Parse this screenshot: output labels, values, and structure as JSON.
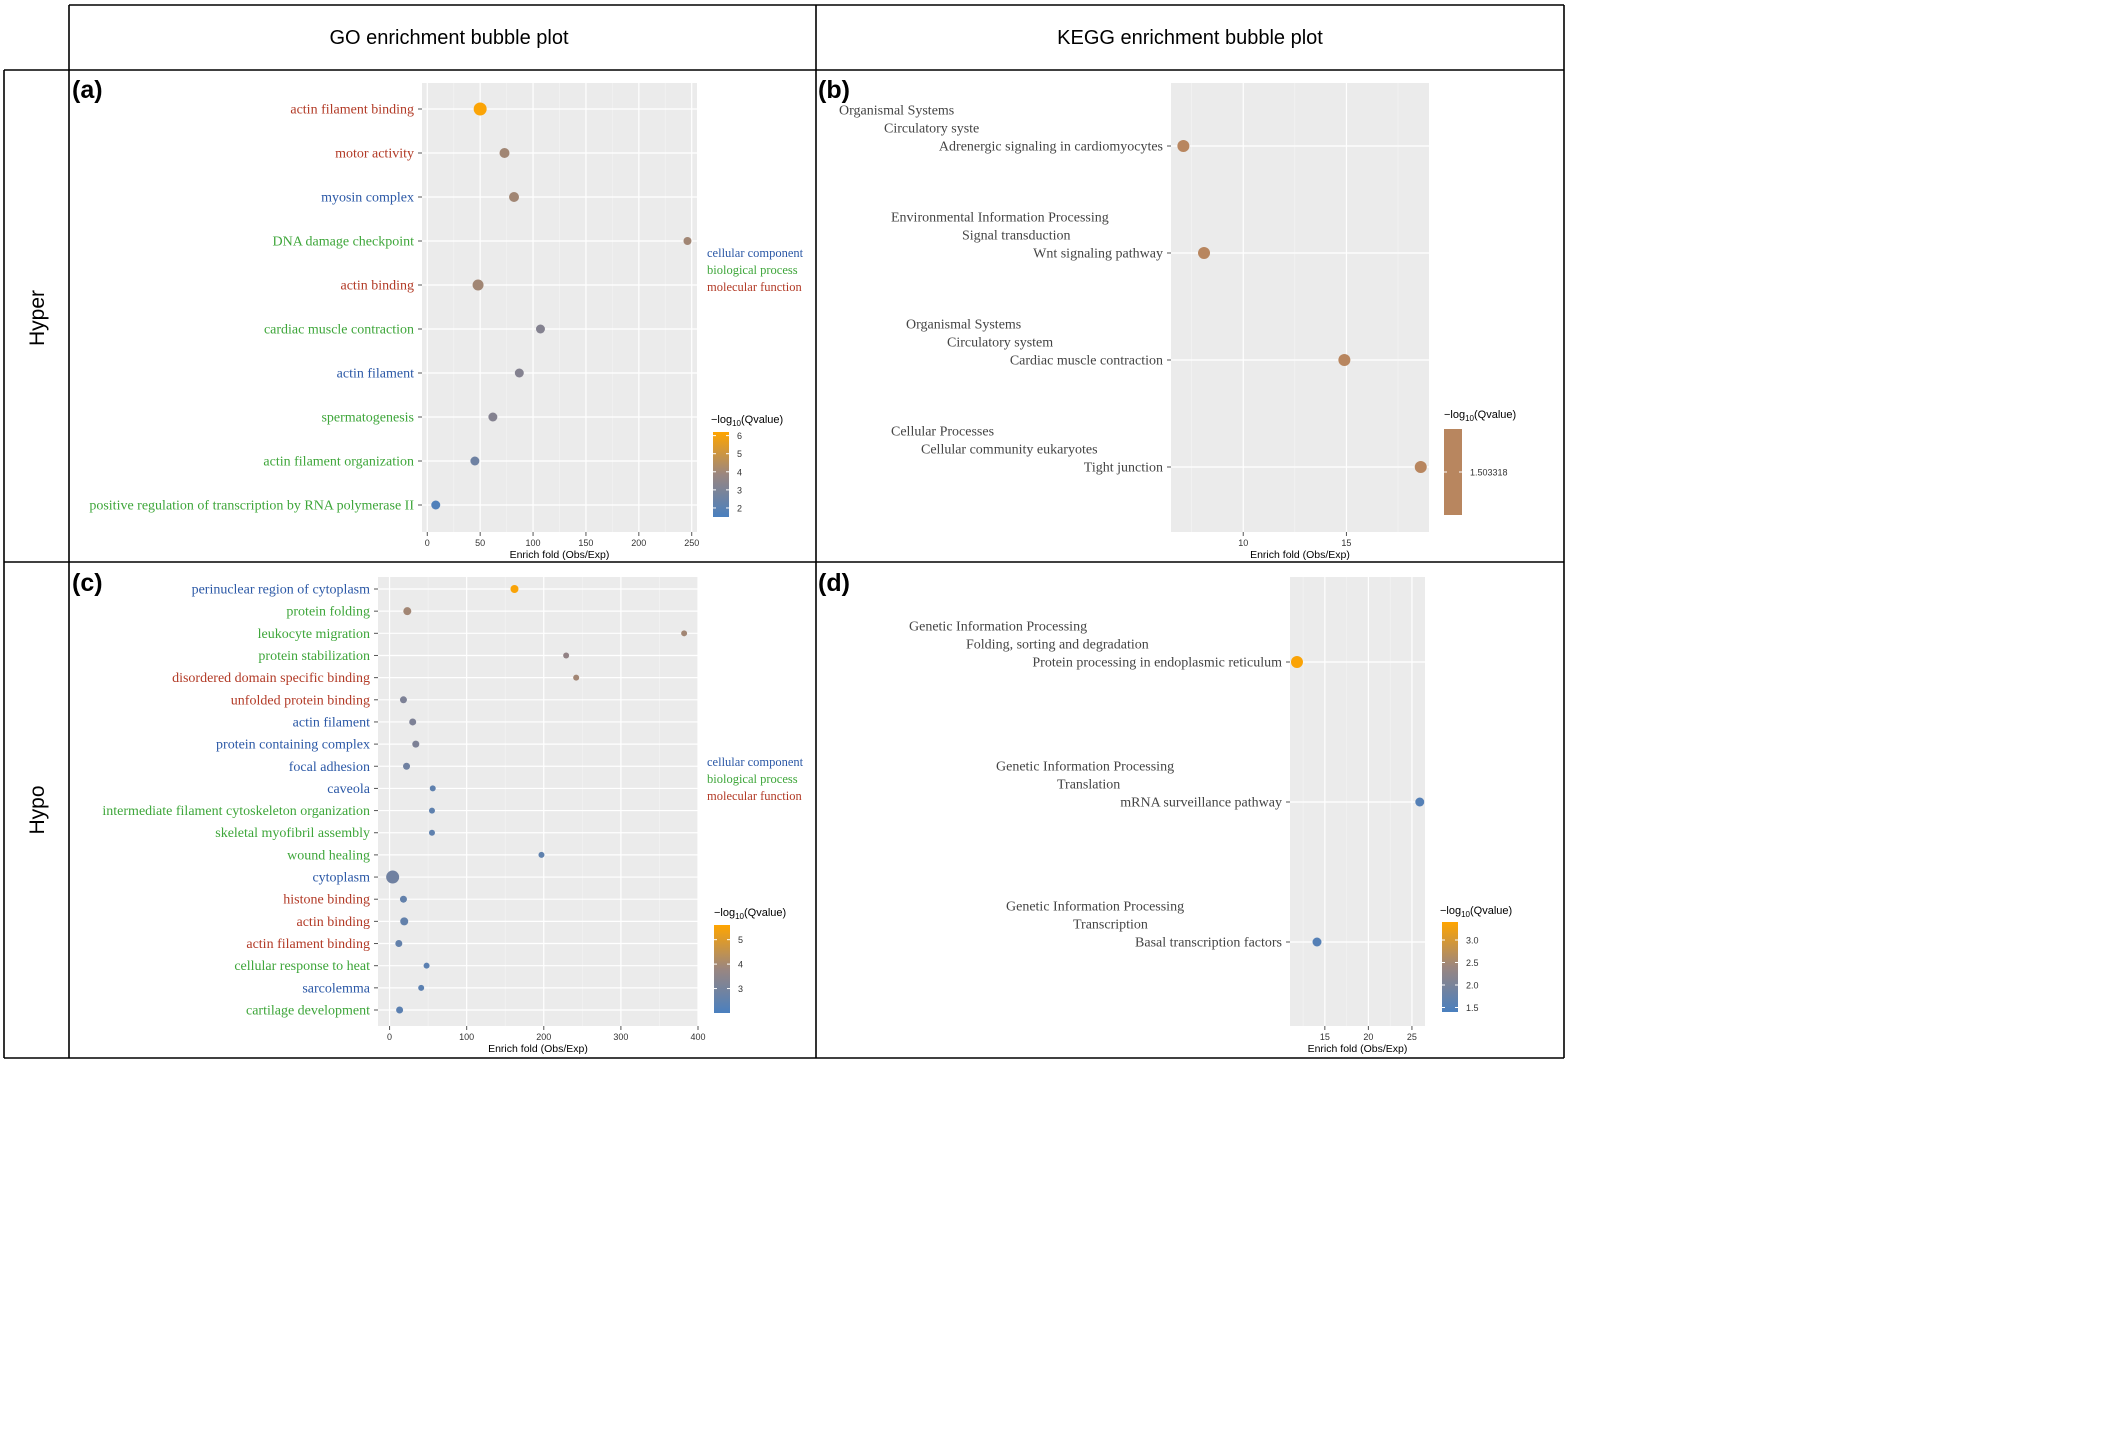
{
  "header": {
    "go_title": "GO enrichment bubble plot",
    "kegg_title": "KEGG enrichment bubble plot"
  },
  "rows": [
    "Hyper",
    "Hypo"
  ],
  "colors": {
    "cellular_component": "#2b58a6",
    "biological_process": "#3ea63a",
    "molecular_function": "#b23a26",
    "kegg_label": "#444444",
    "panel_bg": "#ebebeb",
    "low": "#4a80bf",
    "high": "#ffa500"
  },
  "category_legend": [
    "cellular component",
    "biological process",
    "molecular function"
  ],
  "legend_title": {
    "prefix": "−log",
    "sub": "10",
    "suffix": "(Qvalue)"
  },
  "chart_data": [
    {
      "panel": "(a)",
      "type": "scatter",
      "xlabel": "Enrich fold (Obs/Exp)",
      "xlim": [
        -5,
        255
      ],
      "xticks": [
        0,
        50,
        100,
        150,
        200,
        250
      ],
      "colorbar_ticks": [
        "2",
        "3",
        "4",
        "5",
        "6"
      ],
      "colorbar_range": [
        1.5,
        6.2
      ],
      "points": [
        {
          "term": "actin filament binding",
          "category": "molecular_function",
          "x": 50,
          "q": 6.1,
          "size": 13
        },
        {
          "term": "motor activity",
          "category": "molecular_function",
          "x": 73,
          "q": 4.1,
          "size": 10
        },
        {
          "term": "myosin complex",
          "category": "cellular_component",
          "x": 82,
          "q": 4.1,
          "size": 10
        },
        {
          "term": "DNA damage checkpoint",
          "category": "biological_process",
          "x": 246,
          "q": 4.1,
          "size": 8
        },
        {
          "term": "actin binding",
          "category": "molecular_function",
          "x": 48,
          "q": 4.1,
          "size": 11
        },
        {
          "term": "cardiac muscle contraction",
          "category": "biological_process",
          "x": 107,
          "q": 3.3,
          "size": 9
        },
        {
          "term": "actin filament",
          "category": "cellular_component",
          "x": 87,
          "q": 3.3,
          "size": 9
        },
        {
          "term": "spermatogenesis",
          "category": "biological_process",
          "x": 62,
          "q": 3.3,
          "size": 9
        },
        {
          "term": "actin filament organization",
          "category": "biological_process",
          "x": 45,
          "q": 2.6,
          "size": 9
        },
        {
          "term": "positive regulation of transcription by RNA polymerase II",
          "category": "biological_process",
          "x": 8,
          "q": 1.7,
          "size": 9
        }
      ]
    },
    {
      "panel": "(b)",
      "type": "scatter",
      "xlabel": "Enrich fold (Obs/Exp)",
      "xlim": [
        6.5,
        19.0
      ],
      "xticks": [
        10,
        15
      ],
      "colorbar_ticks": [
        "1.503318"
      ],
      "single_value_color": "#b8865f",
      "points": [
        {
          "lines": [
            "Organismal Systems",
            "Circulatory syste",
            "Adrenergic signaling in cardiomyocytes"
          ],
          "x": 7.1,
          "q": 1.503318,
          "size": 12
        },
        {
          "lines": [
            "Environmental Information Processing",
            "Signal transduction",
            "Wnt signaling pathway"
          ],
          "x": 8.1,
          "q": 1.503318,
          "size": 12
        },
        {
          "lines": [
            "Organismal Systems",
            "Circulatory system",
            "Cardiac muscle contraction"
          ],
          "x": 14.9,
          "q": 1.503318,
          "size": 12
        },
        {
          "lines": [
            "Cellular Processes",
            "Cellular community eukaryotes",
            "Tight junction"
          ],
          "x": 18.6,
          "q": 1.503318,
          "size": 12
        }
      ]
    },
    {
      "panel": "(c)",
      "type": "scatter",
      "xlabel": "Enrich fold (Obs/Exp)",
      "xlim": [
        -15,
        400
      ],
      "xticks": [
        0,
        100,
        200,
        300,
        400
      ],
      "colorbar_ticks": [
        "3",
        "4",
        "5"
      ],
      "colorbar_range": [
        2.0,
        5.6
      ],
      "points": [
        {
          "term": "perinuclear region of cytoplasm",
          "category": "cellular_component",
          "x": 162,
          "q": 5.5,
          "size": 8
        },
        {
          "term": "protein folding",
          "category": "biological_process",
          "x": 23,
          "q": 4.0,
          "size": 8
        },
        {
          "term": "leukocyte migration",
          "category": "biological_process",
          "x": 382,
          "q": 4.0,
          "size": 6
        },
        {
          "term": "protein stabilization",
          "category": "biological_process",
          "x": 229,
          "q": 3.7,
          "size": 6
        },
        {
          "term": "disordered domain specific binding",
          "category": "molecular_function",
          "x": 242,
          "q": 4.0,
          "size": 6
        },
        {
          "term": "unfolded protein binding",
          "category": "molecular_function",
          "x": 18,
          "q": 3.2,
          "size": 7
        },
        {
          "term": "actin filament",
          "category": "cellular_component",
          "x": 30,
          "q": 3.2,
          "size": 7
        },
        {
          "term": "protein containing complex",
          "category": "cellular_component",
          "x": 34,
          "q": 3.2,
          "size": 7
        },
        {
          "term": "focal adhesion",
          "category": "cellular_component",
          "x": 22,
          "q": 2.9,
          "size": 7
        },
        {
          "term": "caveola",
          "category": "cellular_component",
          "x": 56,
          "q": 2.5,
          "size": 6
        },
        {
          "term": "intermediate filament cytoskeleton organization",
          "category": "biological_process",
          "x": 55,
          "q": 2.5,
          "size": 6
        },
        {
          "term": "skeletal myofibril assembly",
          "category": "biological_process",
          "x": 55,
          "q": 2.5,
          "size": 6
        },
        {
          "term": "wound healing",
          "category": "biological_process",
          "x": 197,
          "q": 2.5,
          "size": 6
        },
        {
          "term": "cytoplasm",
          "category": "cellular_component",
          "x": 4,
          "q": 2.9,
          "size": 13
        },
        {
          "term": "histone binding",
          "category": "molecular_function",
          "x": 18,
          "q": 2.6,
          "size": 7
        },
        {
          "term": "actin binding",
          "category": "molecular_function",
          "x": 19,
          "q": 2.6,
          "size": 8
        },
        {
          "term": "actin filament binding",
          "category": "molecular_function",
          "x": 12,
          "q": 2.6,
          "size": 7
        },
        {
          "term": "cellular response to heat",
          "category": "biological_process",
          "x": 48,
          "q": 2.4,
          "size": 6
        },
        {
          "term": "sarcolemma",
          "category": "cellular_component",
          "x": 41,
          "q": 2.4,
          "size": 6
        },
        {
          "term": "cartilage development",
          "category": "biological_process",
          "x": 13,
          "q": 2.4,
          "size": 7
        }
      ]
    },
    {
      "panel": "(d)",
      "type": "scatter",
      "xlabel": "Enrich fold (Obs/Exp)",
      "xlim": [
        11.0,
        26.5
      ],
      "xticks": [
        15,
        20,
        25
      ],
      "colorbar_ticks": [
        "1.5",
        "2.0",
        "2.5",
        "3.0"
      ],
      "colorbar_range": [
        1.4,
        3.4
      ],
      "points": [
        {
          "lines": [
            "Genetic Information Processing",
            "Folding, sorting and degradation",
            "Protein processing in endoplasmic reticulum"
          ],
          "x": 11.8,
          "q": 3.35,
          "size": 12
        },
        {
          "lines": [
            "Genetic Information Processing",
            "Translation",
            "mRNA surveillance pathway"
          ],
          "x": 25.9,
          "q": 1.55,
          "size": 9
        },
        {
          "lines": [
            "Genetic Information Processing",
            "Transcription",
            "Basal transcription factors"
          ],
          "x": 14.1,
          "q": 1.55,
          "size": 9
        }
      ]
    }
  ]
}
